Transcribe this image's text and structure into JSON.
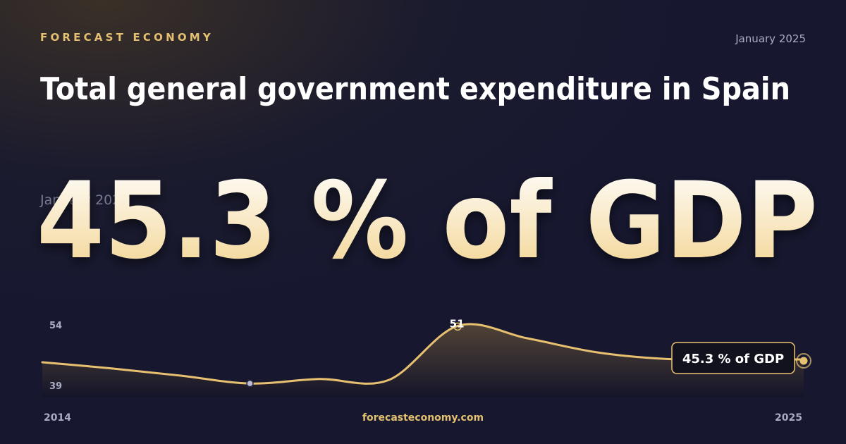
{
  "brand": "FORECAST ECONOMY",
  "date": "January 2025",
  "footer": "forecasteconomy.com",
  "chart_data": {
    "type": "line",
    "title": "Total general government expenditure in Spain",
    "categories": [
      "2014",
      null,
      null,
      null,
      null,
      null,
      null,
      null,
      null,
      null,
      null,
      "2025"
    ],
    "series": [
      {
        "name": "Total general government expenditure",
        "color": "#e8c170",
        "values": [
          44.8,
          43.7,
          42.4,
          41.0,
          41.8,
          41.6,
          51.3,
          49.1,
          46.6,
          45.4,
          45.3,
          45.3
        ],
        "value_labels": [
          null,
          null,
          null,
          null,
          null,
          null,
          "51",
          null,
          null,
          null,
          null,
          "45.3 % of GDP"
        ]
      }
    ],
    "ylim": [
      39,
      54
    ],
    "yticks": [
      54,
      39
    ]
  }
}
